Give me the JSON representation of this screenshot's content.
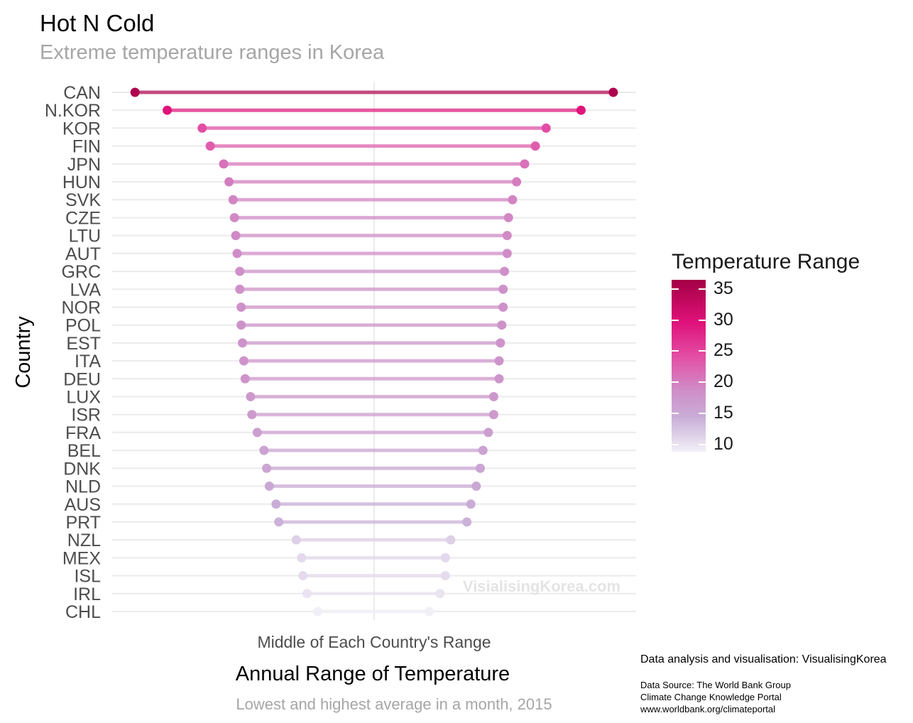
{
  "header": {
    "title": "Hot N Cold",
    "subtitle": "Extreme temperature ranges in Korea"
  },
  "footer": {
    "credit": "Data analysis and visualisation: VisualisingKorea",
    "source_lines": [
      "Data Source: The World Bank Group",
      "Climate Change Knowledge Portal",
      "www.worldbank.org/climateportal"
    ]
  },
  "chart_data": {
    "type": "dumbbell",
    "title": "Hot N Cold",
    "subtitle": "Extreme temperature ranges in Korea",
    "ylabel": "Country",
    "xlabel": "Annual Range of Temperature",
    "x_tick_label": "Middle of Each Country's Range",
    "caption": "Lowest and highest average in a month, 2015",
    "watermark": "VisialisingKorea.com",
    "legend": {
      "title": "Temperature Range",
      "ticks": [
        35,
        30,
        25,
        20,
        15,
        10
      ],
      "range": [
        8.8,
        36.5
      ],
      "colors": [
        "#f2f0f7",
        "#c9aed7",
        "#cf8fc8",
        "#e34fa6",
        "#e0127a",
        "#a30045"
      ]
    },
    "categories": [
      "CAN",
      "N.KOR",
      "KOR",
      "FIN",
      "JPN",
      "HUN",
      "SVK",
      "CZE",
      "LTU",
      "AUT",
      "GRC",
      "LVA",
      "NOR",
      "POL",
      "EST",
      "ITA",
      "DEU",
      "LUX",
      "ISR",
      "FRA",
      "BEL",
      "DNK",
      "NLD",
      "AUS",
      "PRT",
      "NZL",
      "MEX",
      "ISL",
      "IRL",
      "CHL"
    ],
    "low": [
      -17.8,
      -15.4,
      -12.8,
      -12.2,
      -11.2,
      -10.8,
      -10.5,
      -10.4,
      -10.3,
      -10.2,
      -10.0,
      -10.0,
      -9.9,
      -9.9,
      -9.8,
      -9.7,
      -9.6,
      -9.2,
      -9.1,
      -8.7,
      -8.2,
      -8.0,
      -7.8,
      -7.3,
      -7.1,
      -5.8,
      -5.4,
      -5.3,
      -5.0,
      -4.2
    ],
    "high": [
      17.8,
      15.4,
      12.8,
      12.0,
      11.2,
      10.6,
      10.3,
      10.0,
      9.9,
      9.9,
      9.7,
      9.6,
      9.6,
      9.5,
      9.4,
      9.3,
      9.3,
      8.9,
      8.9,
      8.5,
      8.1,
      7.9,
      7.6,
      7.2,
      6.9,
      5.7,
      5.3,
      5.3,
      4.9,
      4.1
    ],
    "range": [
      35.6,
      30.8,
      25.6,
      24.2,
      22.4,
      21.4,
      20.8,
      20.4,
      20.2,
      20.1,
      19.7,
      19.6,
      19.5,
      19.4,
      19.2,
      19.0,
      18.9,
      18.1,
      18.0,
      17.2,
      16.3,
      15.9,
      15.4,
      14.5,
      14.0,
      11.5,
      10.7,
      10.6,
      9.9,
      8.3
    ],
    "xlim": [
      -19.5,
      19.5
    ],
    "grid": true,
    "legend_position": "right"
  }
}
